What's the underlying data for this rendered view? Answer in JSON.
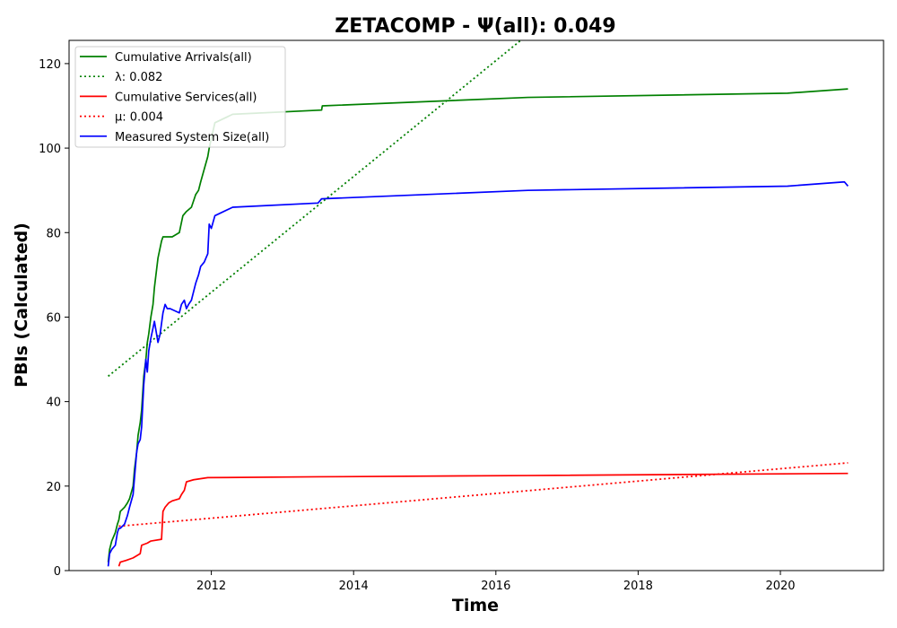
{
  "chart_data": {
    "type": "line",
    "title": "ZETACOMP -  Ψ(all): 0.049",
    "xlabel": "Time",
    "ylabel": "PBIs (Calculated)",
    "xlim": [
      2010.0,
      2021.45
    ],
    "ylim": [
      0,
      125.5
    ],
    "xticks": [
      2012,
      2014,
      2016,
      2018,
      2020
    ],
    "yticks": [
      0,
      20,
      40,
      60,
      80,
      100,
      120
    ],
    "grid": false,
    "legend_position": "top-left",
    "series": [
      {
        "name": "Cumulative Arrivals(all)",
        "legend_label": "Cumulative Arrivals(all)",
        "color": "#008000",
        "style": "solid",
        "x": [
          2010.55,
          2010.57,
          2010.6,
          2010.65,
          2010.68,
          2010.7,
          2010.72,
          2010.78,
          2010.82,
          2010.85,
          2010.9,
          2010.92,
          2010.95,
          2010.97,
          2011.0,
          2011.02,
          2011.05,
          2011.08,
          2011.1,
          2011.12,
          2011.15,
          2011.18,
          2011.2,
          2011.25,
          2011.3,
          2011.32,
          2011.38,
          2011.45,
          2011.55,
          2011.6,
          2011.65,
          2011.72,
          2011.78,
          2011.82,
          2011.85,
          2011.9,
          2011.95,
          2011.97,
          2012.05,
          2012.3,
          2013.55,
          2013.56,
          2016.45,
          2020.1,
          2020.95
        ],
        "y": [
          2,
          5,
          7,
          9,
          11,
          12,
          14,
          15,
          16,
          17,
          20,
          24,
          28,
          32,
          35,
          38,
          46,
          50,
          54,
          56,
          60,
          63,
          67,
          74,
          78,
          79,
          79,
          79,
          80,
          84,
          85,
          86,
          89,
          90,
          92,
          95,
          98,
          100,
          106,
          108,
          109,
          110,
          112,
          113,
          114
        ]
      },
      {
        "name": "λ: 0.082",
        "legend_label": "λ: 0.082",
        "color": "#008000",
        "style": "dotted",
        "x": [
          2010.55,
          2016.35
        ],
        "y": [
          46,
          125.5
        ]
      },
      {
        "name": "Cumulative Services(all)",
        "legend_label": "Cumulative Services(all)",
        "color": "#ff0000",
        "style": "solid",
        "x": [
          2010.7,
          2010.72,
          2010.8,
          2010.9,
          2010.95,
          2011.0,
          2011.02,
          2011.1,
          2011.15,
          2011.3,
          2011.32,
          2011.35,
          2011.4,
          2011.45,
          2011.55,
          2011.58,
          2011.62,
          2011.65,
          2011.75,
          2011.95,
          2013.5,
          2016.45,
          2020.95
        ],
        "y": [
          1,
          2,
          2.4,
          3,
          3.5,
          4,
          6,
          6.5,
          7,
          7.4,
          14,
          15,
          16,
          16.5,
          17,
          18,
          19,
          21,
          21.5,
          22,
          22.2,
          22.5,
          23
        ]
      },
      {
        "name": "μ: 0.004",
        "legend_label": "μ: 0.004",
        "color": "#ff0000",
        "style": "dotted",
        "x": [
          2010.7,
          2020.95
        ],
        "y": [
          10.5,
          25.5
        ]
      },
      {
        "name": "Measured System Size(all)",
        "legend_label": "Measured System Size(all)",
        "color": "#0000ff",
        "style": "solid",
        "x": [
          2010.55,
          2010.57,
          2010.6,
          2010.65,
          2010.68,
          2010.7,
          2010.72,
          2010.78,
          2010.82,
          2010.85,
          2010.9,
          2010.92,
          2010.95,
          2010.97,
          2011.0,
          2011.02,
          2011.05,
          2011.08,
          2011.1,
          2011.12,
          2011.15,
          2011.2,
          2011.25,
          2011.28,
          2011.32,
          2011.35,
          2011.38,
          2011.42,
          2011.55,
          2011.58,
          2011.62,
          2011.65,
          2011.68,
          2011.72,
          2011.78,
          2011.82,
          2011.85,
          2011.9,
          2011.95,
          2011.97,
          2012.0,
          2012.05,
          2012.3,
          2013.5,
          2013.55,
          2016.45,
          2020.1,
          2020.9,
          2020.95
        ],
        "y": [
          1,
          4,
          5,
          6,
          9,
          10,
          10,
          11,
          13,
          15,
          18,
          22,
          28,
          30,
          31,
          34,
          44,
          50,
          47,
          52,
          55,
          59,
          54,
          56,
          61,
          63,
          62,
          62,
          61,
          63,
          64,
          62,
          63,
          64,
          68,
          70,
          72,
          73,
          75,
          82,
          81,
          84,
          86,
          87,
          88,
          90,
          91,
          92,
          91
        ]
      }
    ]
  }
}
